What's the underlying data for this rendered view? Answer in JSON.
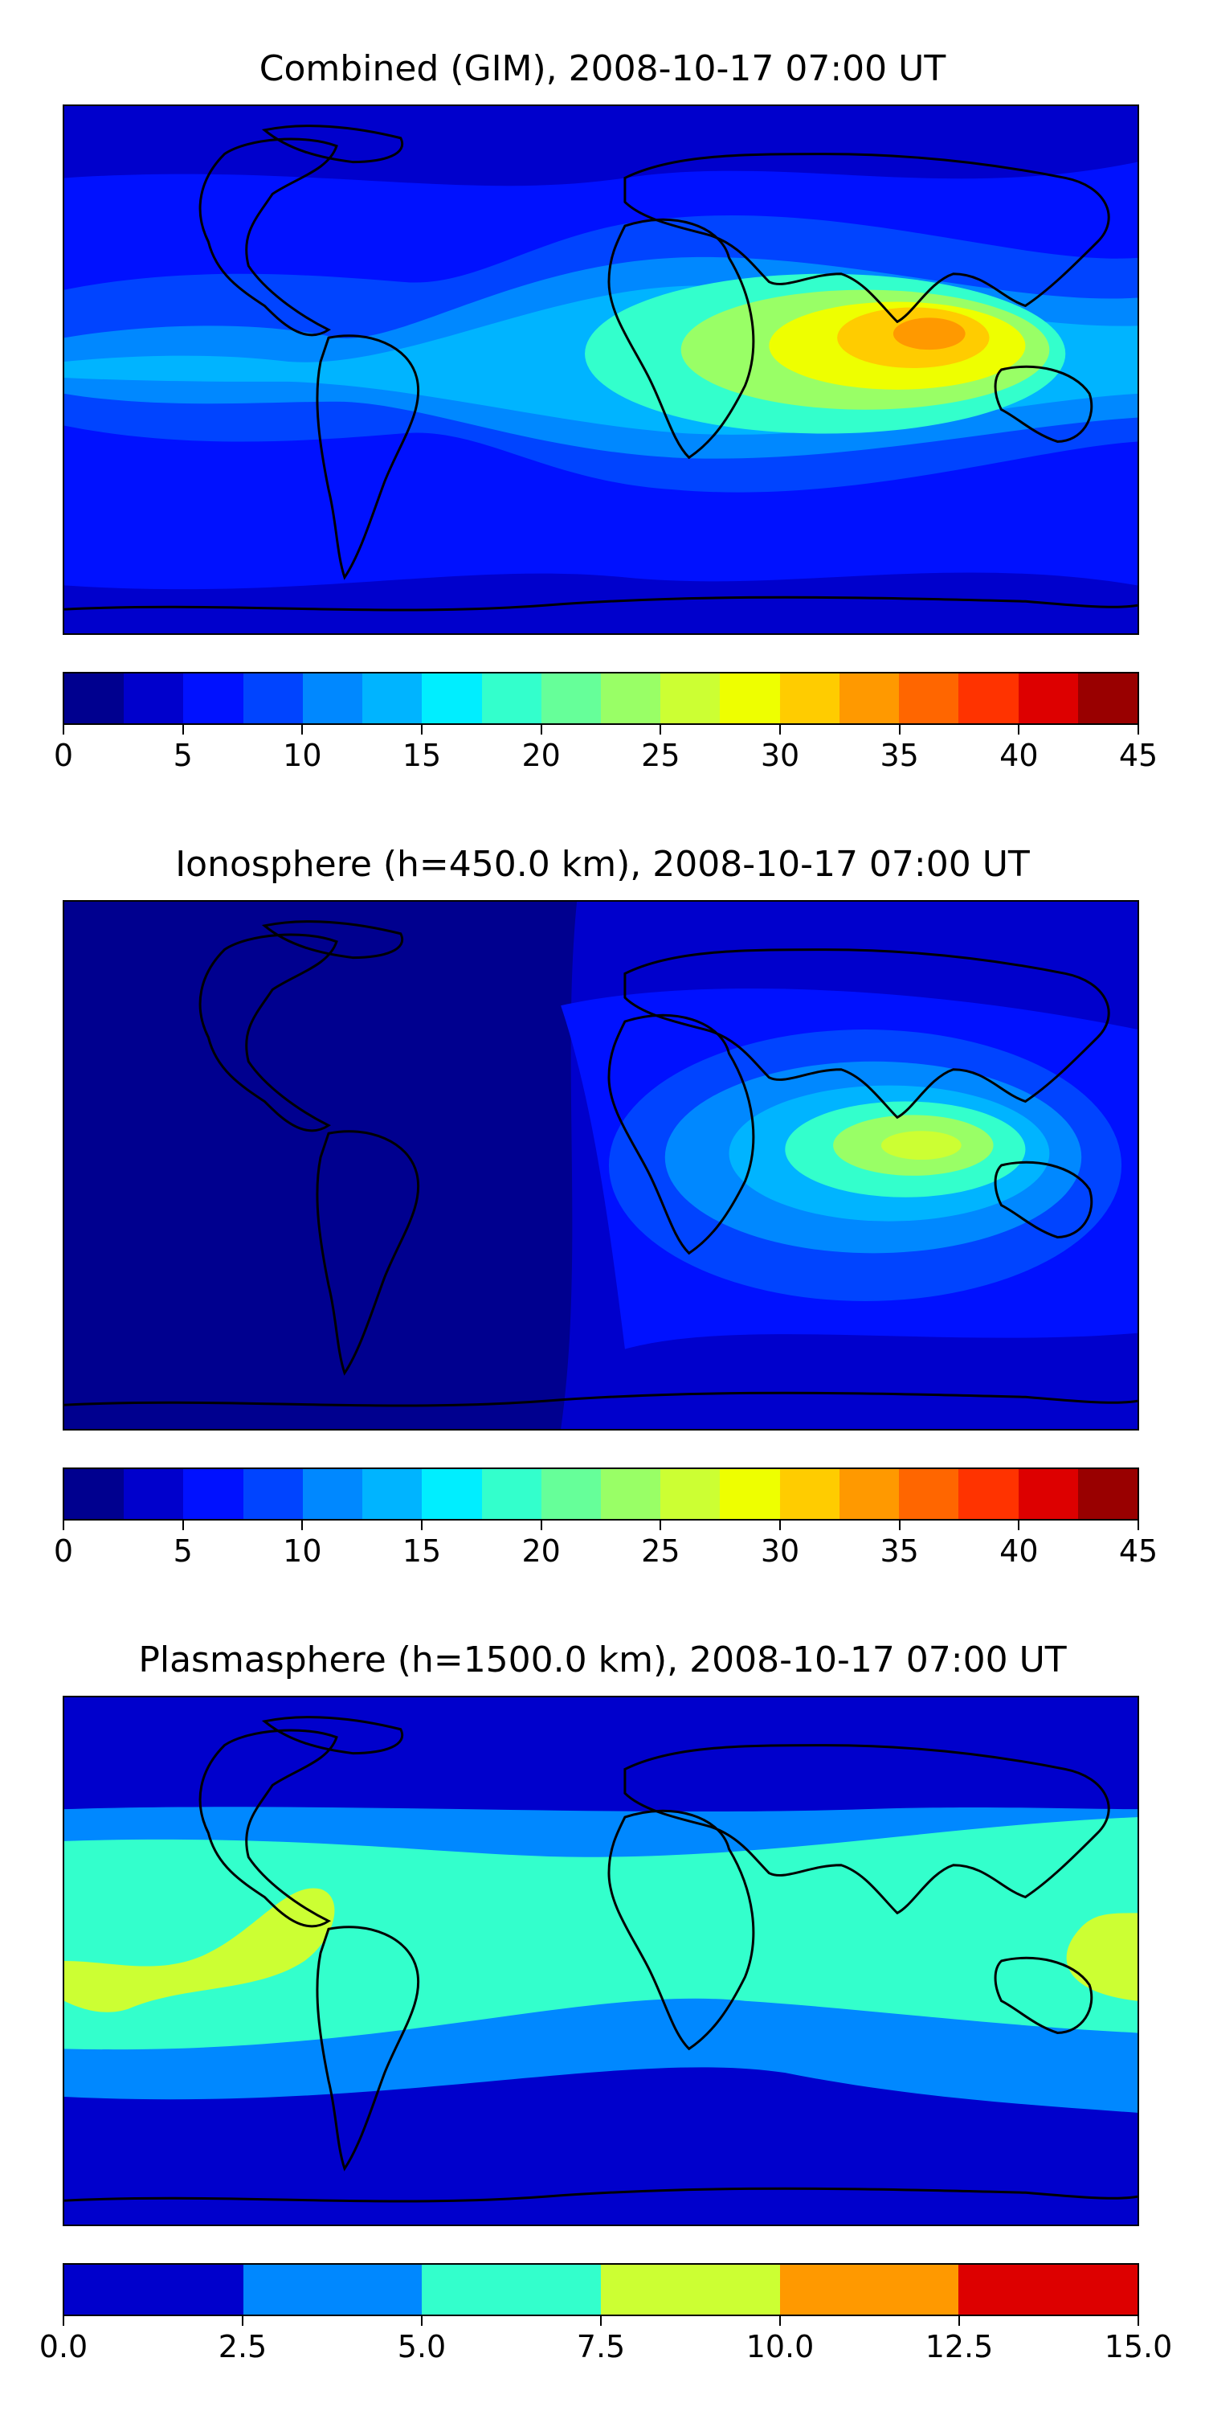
{
  "panels": [
    {
      "id": "combined",
      "title": "Combined (GIM), 2008-10-17 07:00 UT",
      "colorbar": {
        "ticks": [
          "0",
          "5",
          "10",
          "15",
          "20",
          "25",
          "30",
          "35",
          "40",
          "45"
        ],
        "colors": [
          "#00008f",
          "#0000cc",
          "#0011ff",
          "#0044ff",
          "#0088ff",
          "#00b4ff",
          "#00eeff",
          "#33ffcc",
          "#66ff99",
          "#99ff66",
          "#ccff33",
          "#eeff00",
          "#ffcc00",
          "#ff9900",
          "#ff6600",
          "#ff3300",
          "#dd0000",
          "#990000"
        ]
      },
      "field": {
        "background": "#0011ff",
        "regions": [
          {
            "shape": "north-cap",
            "color": "#0000cc"
          },
          {
            "shape": "south-cap",
            "color": "#0000cc"
          },
          {
            "shape": "ring",
            "color": "#0044ff"
          },
          {
            "shape": "ring",
            "color": "#0088ff"
          },
          {
            "shape": "ring",
            "color": "#00b4ff"
          },
          {
            "shape": "ring",
            "color": "#33ffcc"
          },
          {
            "shape": "ring",
            "color": "#99ff66"
          },
          {
            "shape": "ring",
            "color": "#eeff00"
          },
          {
            "shape": "core",
            "color": "#ffcc00"
          },
          {
            "shape": "core",
            "color": "#ff9900"
          }
        ]
      }
    },
    {
      "id": "ionosphere",
      "title": "Ionosphere  (h=450.0 km), 2008-10-17 07:00 UT",
      "colorbar": {
        "ticks": [
          "0",
          "5",
          "10",
          "15",
          "20",
          "25",
          "30",
          "35",
          "40",
          "45"
        ],
        "colors": [
          "#00008f",
          "#0000cc",
          "#0011ff",
          "#0044ff",
          "#0088ff",
          "#00b4ff",
          "#00eeff",
          "#33ffcc",
          "#66ff99",
          "#99ff66",
          "#ccff33",
          "#eeff00",
          "#ffcc00",
          "#ff9900",
          "#ff6600",
          "#ff3300",
          "#dd0000",
          "#990000"
        ]
      },
      "field": {
        "background": "#0000cc",
        "regions": [
          {
            "shape": "americas-low",
            "color": "#00008f"
          },
          {
            "shape": "ring",
            "color": "#0011ff"
          },
          {
            "shape": "ring",
            "color": "#0044ff"
          },
          {
            "shape": "ring",
            "color": "#0088ff"
          },
          {
            "shape": "ring",
            "color": "#00b4ff"
          },
          {
            "shape": "ring",
            "color": "#33ffcc"
          },
          {
            "shape": "core",
            "color": "#99ff66"
          },
          {
            "shape": "core",
            "color": "#ccff33"
          }
        ]
      }
    },
    {
      "id": "plasmasphere",
      "title": "Plasmasphere (h=1500.0 km), 2008-10-17 07:00 UT",
      "colorbar": {
        "ticks": [
          "0.0",
          "2.5",
          "5.0",
          "7.5",
          "10.0",
          "12.5",
          "15.0"
        ],
        "colors": [
          "#0000cc",
          "#0088ff",
          "#33ffcc",
          "#ccff33",
          "#ff9900",
          "#dd0000"
        ]
      },
      "field": {
        "background": "#0000cc",
        "regions": [
          {
            "shape": "band",
            "color": "#0088ff"
          },
          {
            "shape": "band",
            "color": "#33ffcc"
          },
          {
            "shape": "blob",
            "color": "#ccff33"
          }
        ]
      }
    }
  ],
  "coastline_color": "#000000"
}
